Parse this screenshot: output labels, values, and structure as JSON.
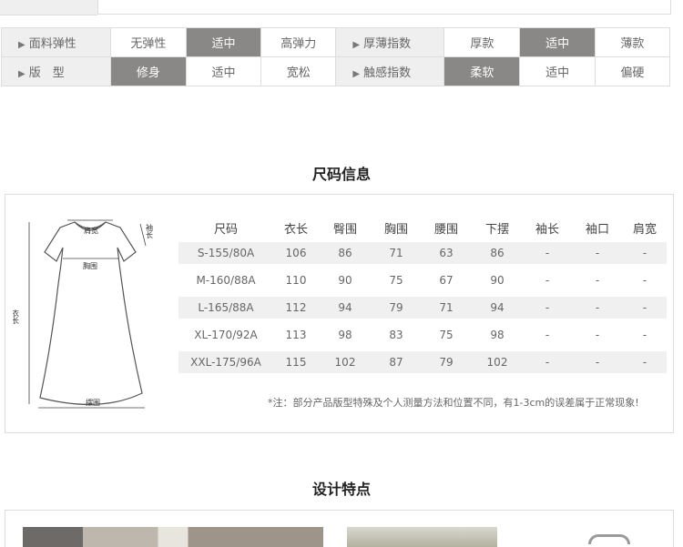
{
  "attributes": {
    "rows": [
      [
        {
          "type": "label",
          "text": "面料弹性"
        },
        {
          "type": "option",
          "text": "无弹性",
          "selected": false
        },
        {
          "type": "option",
          "text": "适中",
          "selected": true
        },
        {
          "type": "option",
          "text": "高弹力",
          "selected": false
        },
        {
          "type": "label",
          "text": "厚薄指数"
        },
        {
          "type": "option",
          "text": "厚款",
          "selected": false
        },
        {
          "type": "option",
          "text": "适中",
          "selected": true
        },
        {
          "type": "option",
          "text": "薄款",
          "selected": false
        }
      ],
      [
        {
          "type": "label",
          "text": "版　型"
        },
        {
          "type": "option",
          "text": "修身",
          "selected": true
        },
        {
          "type": "option",
          "text": "适中",
          "selected": false
        },
        {
          "type": "option",
          "text": "宽松",
          "selected": false
        },
        {
          "type": "label",
          "text": "触感指数"
        },
        {
          "type": "option",
          "text": "柔软",
          "selected": true
        },
        {
          "type": "option",
          "text": "适中",
          "selected": false
        },
        {
          "type": "option",
          "text": "偏硬",
          "selected": false
        }
      ]
    ]
  },
  "size_section": {
    "title": "尺码信息",
    "diagram_labels": {
      "shoulder": "肩宽",
      "sleeve": "袖长",
      "chest": "胸围",
      "length": "衣长",
      "hem": "摆围"
    },
    "columns": [
      "尺码",
      "衣长",
      "臀围",
      "胸围",
      "腰围",
      "下摆",
      "袖长",
      "袖口",
      "肩宽"
    ],
    "rows": [
      [
        "S-155/80A",
        "106",
        "86",
        "71",
        "63",
        "86",
        "-",
        "-",
        "-"
      ],
      [
        "M-160/88A",
        "110",
        "90",
        "75",
        "67",
        "90",
        "-",
        "-",
        "-"
      ],
      [
        "L-165/88A",
        "112",
        "94",
        "79",
        "71",
        "94",
        "-",
        "-",
        "-"
      ],
      [
        "XL-170/92A",
        "113",
        "98",
        "83",
        "75",
        "98",
        "-",
        "-",
        "-"
      ],
      [
        "XXL-175/96A",
        "115",
        "102",
        "87",
        "79",
        "102",
        "-",
        "-",
        "-"
      ]
    ],
    "note": "*注：部分产品版型特殊及个人测量方法和位置不同，有1-3cm的误差属于正常现象!"
  },
  "feature_section": {
    "title": "设计特点"
  },
  "colors": {
    "selected_bg": "#8a8787",
    "label_bg": "#efefef",
    "border": "#dddddd",
    "row_shade": "#f0f0f0"
  }
}
